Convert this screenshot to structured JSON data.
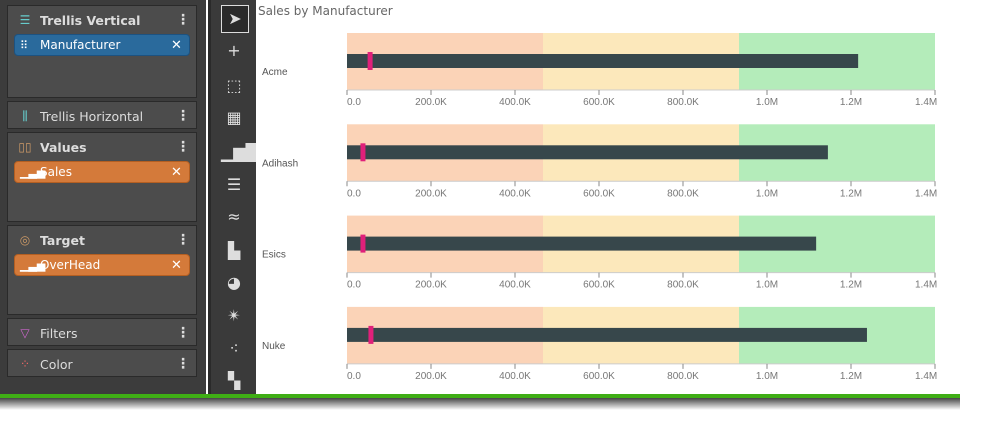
{
  "panel": {
    "trellis_vertical": {
      "label": "Trellis Vertical",
      "pill": "Manufacturer"
    },
    "trellis_horizontal": {
      "label": "Trellis Horizontal"
    },
    "values": {
      "label": "Values",
      "pill": "Sales"
    },
    "target": {
      "label": "Target",
      "pill": "OverHead"
    },
    "filters": {
      "label": "Filters"
    },
    "color": {
      "label": "Color"
    },
    "remove_glyph": "✕",
    "menu_glyph": "⋮"
  },
  "toolbar": [
    "select-pointer",
    "add-pointer",
    "marquee-select",
    "table-chart",
    "column-chart",
    "bar-chart",
    "line-chart",
    "area-chart",
    "pie-chart",
    "radar-chart",
    "scatter-chart",
    "treemap-chart"
  ],
  "chart_data": {
    "type": "bullet",
    "title": "Sales by Manufacturer",
    "xlim": [
      0,
      1400000
    ],
    "ticks": [
      "0.0",
      "200.0K",
      "400.0K",
      "600.0K",
      "800.0K",
      "1.0M",
      "1.2M",
      "1.4M"
    ],
    "tick_values": [
      0,
      200000,
      400000,
      600000,
      800000,
      1000000,
      1200000,
      1400000
    ],
    "ranges": [
      466667,
      933333,
      1400000
    ],
    "range_colors": [
      "#fbd3b7",
      "#fce8bb",
      "#b4ecba"
    ],
    "bar_color": "#37474b",
    "target_color": "#e0207a",
    "categories": [
      "Acme",
      "Adihash",
      "Esics",
      "Nuke"
    ],
    "values": [
      1217000,
      1145000,
      1117000,
      1238000
    ],
    "targets": [
      55000,
      38000,
      38000,
      57000
    ]
  }
}
